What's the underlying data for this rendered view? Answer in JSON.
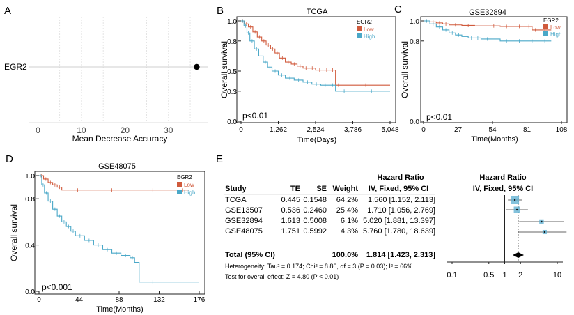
{
  "colors": {
    "low": "#d05a3c",
    "high": "#4aa8c8",
    "axis": "#222222",
    "grid": "#d8d8d8",
    "box": "#5aaed0"
  },
  "chart_data": [
    {
      "panel": "A",
      "type": "scatter",
      "title": "",
      "xlabel": "Mean Decrease Accuracy",
      "ylabel": "",
      "categories": [
        "EGR2"
      ],
      "values": [
        36.5
      ],
      "xlim": [
        -2,
        39
      ],
      "xticks": [
        0,
        10,
        20,
        30
      ],
      "grid": true
    },
    {
      "panel": "B",
      "type": "line",
      "title": "TCGA",
      "xlabel": "Time(Days)",
      "ylabel": "Overall survival",
      "xlim": [
        0,
        5048
      ],
      "ylim": [
        0,
        1
      ],
      "xticks": [
        0,
        1262,
        2524,
        3786,
        5048
      ],
      "yticks": [
        0.0,
        0.3,
        0.5,
        0.8,
        1.0
      ],
      "ytick_labels": [
        "0.0",
        "0.3",
        "0.5",
        "0.8",
        "1.0"
      ],
      "legend_title": "EGR2",
      "pvalue": "p<0.01",
      "series": [
        {
          "name": "Low",
          "x": [
            0,
            120,
            250,
            400,
            550,
            700,
            850,
            1000,
            1150,
            1300,
            1500,
            1700,
            1900,
            2100,
            2300,
            2524,
            2800,
            3000,
            3200,
            3400,
            5048
          ],
          "y": [
            1.0,
            0.97,
            0.94,
            0.89,
            0.84,
            0.8,
            0.76,
            0.72,
            0.68,
            0.63,
            0.59,
            0.57,
            0.55,
            0.53,
            0.53,
            0.51,
            0.51,
            0.51,
            0.36,
            0.36,
            0.36
          ]
        },
        {
          "name": "High",
          "x": [
            0,
            100,
            200,
            300,
            450,
            600,
            750,
            900,
            1050,
            1262,
            1500,
            1800,
            2100,
            2400,
            2700,
            3000,
            3200,
            3786,
            5048
          ],
          "y": [
            1.0,
            0.95,
            0.88,
            0.8,
            0.72,
            0.65,
            0.59,
            0.54,
            0.5,
            0.46,
            0.43,
            0.41,
            0.39,
            0.37,
            0.36,
            0.36,
            0.3,
            0.3,
            0.3
          ]
        }
      ]
    },
    {
      "panel": "C",
      "type": "line",
      "title": "GSE32894",
      "xlabel": "Time(Months)",
      "ylabel": "Overall survival",
      "xlim": [
        0,
        108
      ],
      "ylim": [
        0,
        1
      ],
      "xticks": [
        0,
        27,
        54,
        81,
        108
      ],
      "yticks": [
        0.0,
        0.8,
        1.0
      ],
      "ytick_labels": [
        "0.0",
        "0.8",
        "1.0"
      ],
      "legend_title": "EGR2",
      "pvalue": "p<0.01",
      "series": [
        {
          "name": "Low",
          "x": [
            0,
            5,
            10,
            15,
            20,
            30,
            40,
            50,
            60,
            70,
            80,
            85,
            90,
            100
          ],
          "y": [
            1.0,
            0.99,
            0.98,
            0.97,
            0.96,
            0.955,
            0.95,
            0.95,
            0.945,
            0.945,
            0.945,
            0.91,
            0.91,
            0.91
          ]
        },
        {
          "name": "High",
          "x": [
            0,
            5,
            10,
            15,
            20,
            25,
            30,
            35,
            40,
            45,
            55,
            60,
            70,
            80,
            90,
            100
          ],
          "y": [
            1.0,
            0.97,
            0.94,
            0.91,
            0.88,
            0.86,
            0.845,
            0.83,
            0.83,
            0.82,
            0.82,
            0.8,
            0.8,
            0.8,
            0.8,
            0.8
          ]
        }
      ]
    },
    {
      "panel": "D",
      "type": "line",
      "title": "GSE48075",
      "xlabel": "Time(Months)",
      "ylabel": "Overall survival",
      "xlim": [
        0,
        176
      ],
      "ylim": [
        0,
        1
      ],
      "xticks": [
        0,
        44,
        88,
        132,
        176
      ],
      "yticks": [
        0.0,
        0.4,
        0.8,
        1.0
      ],
      "ytick_labels": [
        "0.0",
        "0.4",
        "0.8",
        "1.0"
      ],
      "legend_title": "EGR2",
      "pvalue": "p<0.001",
      "series": [
        {
          "name": "Low",
          "x": [
            0,
            5,
            10,
            15,
            20,
            25,
            60,
            100,
            150,
            165
          ],
          "y": [
            1.0,
            0.97,
            0.94,
            0.92,
            0.9,
            0.875,
            0.875,
            0.875,
            0.875,
            0.875
          ]
        },
        {
          "name": "High",
          "x": [
            0,
            3,
            6,
            10,
            15,
            20,
            25,
            30,
            35,
            40,
            50,
            60,
            70,
            80,
            90,
            100,
            105,
            110,
            140,
            176
          ],
          "y": [
            1.0,
            0.92,
            0.85,
            0.78,
            0.71,
            0.65,
            0.6,
            0.56,
            0.52,
            0.48,
            0.44,
            0.4,
            0.36,
            0.33,
            0.31,
            0.29,
            0.25,
            0.08,
            0.08,
            0.08
          ]
        }
      ]
    }
  ],
  "panels": {
    "A": {
      "label": "A",
      "row_label": "EGR2",
      "xlabel": "Mean Decrease Accuracy",
      "ticks": [
        "0",
        "10",
        "20",
        "30"
      ]
    },
    "B": {
      "label": "B",
      "title": "TCGA",
      "xlabel": "Time(Days)",
      "ylabel": "Overall survival",
      "pvalue": "p<0.01",
      "legend_title": "EGR2",
      "legend_low": "Low",
      "legend_high": "High",
      "xticks": [
        "0",
        "1,262",
        "2,524",
        "3,786",
        "5,048"
      ],
      "yticks": [
        "0.0",
        "0.3",
        "0.5",
        "0.8",
        "1.0"
      ]
    },
    "C": {
      "label": "C",
      "title": "GSE32894",
      "xlabel": "Time(Months)",
      "ylabel": "Overall survival",
      "pvalue": "p<0.01",
      "legend_title": "EGR2",
      "legend_low": "Low",
      "legend_high": "High",
      "xticks": [
        "0",
        "27",
        "54",
        "81",
        "108"
      ],
      "yticks": [
        "0.0",
        "0.8",
        "1.0"
      ]
    },
    "D": {
      "label": "D",
      "title": "GSE48075",
      "xlabel": "Time(Months)",
      "ylabel": "Overall survival",
      "pvalue": "p<0.001",
      "legend_title": "EGR2",
      "legend_low": "Low",
      "legend_high": "High",
      "xticks": [
        "0",
        "44",
        "88",
        "132",
        "176"
      ],
      "yticks": [
        "0.0",
        "0.4",
        "0.8",
        "1.0"
      ]
    }
  },
  "forest": {
    "label": "E",
    "header_hr": "Hazard Ratio",
    "header_hr_sub": "IV, Fixed, 95% CI",
    "columns": [
      "Study",
      "TE",
      "SE",
      "Weight",
      "IV, Fixed, 95% CI"
    ],
    "rows": [
      {
        "study": "TCGA",
        "te": "0.445",
        "se": "0.1548",
        "weight": "64.2%",
        "ci": "1.560 [1.152, 2.113]",
        "hr": 1.56,
        "lo": 1.152,
        "hi": 2.113,
        "w": 64.2
      },
      {
        "study": "GSE13507",
        "te": "0.536",
        "se": "0.2460",
        "weight": "25.4%",
        "ci": "1.710 [1.056, 2.769]",
        "hr": 1.71,
        "lo": 1.056,
        "hi": 2.769,
        "w": 25.4
      },
      {
        "study": "GSE32894",
        "te": "1.613",
        "se": "0.5008",
        "weight": "6.1%",
        "ci": "5.020 [1.881, 13.397]",
        "hr": 5.02,
        "lo": 1.881,
        "hi": 13.397,
        "w": 6.1
      },
      {
        "study": "GSE48075",
        "te": "1.751",
        "se": "0.5992",
        "weight": "4.3%",
        "ci": "5.760 [1.780, 18.639]",
        "hr": 5.76,
        "lo": 1.78,
        "hi": 18.639,
        "w": 4.3
      }
    ],
    "total": {
      "label": "Total (95% CI)",
      "weight": "100.0%",
      "ci": "1.814 [1.423,  2.313]",
      "hr": 1.814,
      "lo": 1.423,
      "hi": 2.313
    },
    "heterogeneity": "Heterogeneity: Tau² = 0.174; Chi² = 8.86, df = 3 (P = 0.03); I² = 66%",
    "overall_test": "Test for overall effect: Z = 4.80 (P < 0.01)",
    "axis_ticks": [
      0.1,
      0.5,
      1,
      2,
      10
    ],
    "axis_labels": [
      "0.1",
      "0.5",
      "1",
      "2",
      "10"
    ]
  }
}
